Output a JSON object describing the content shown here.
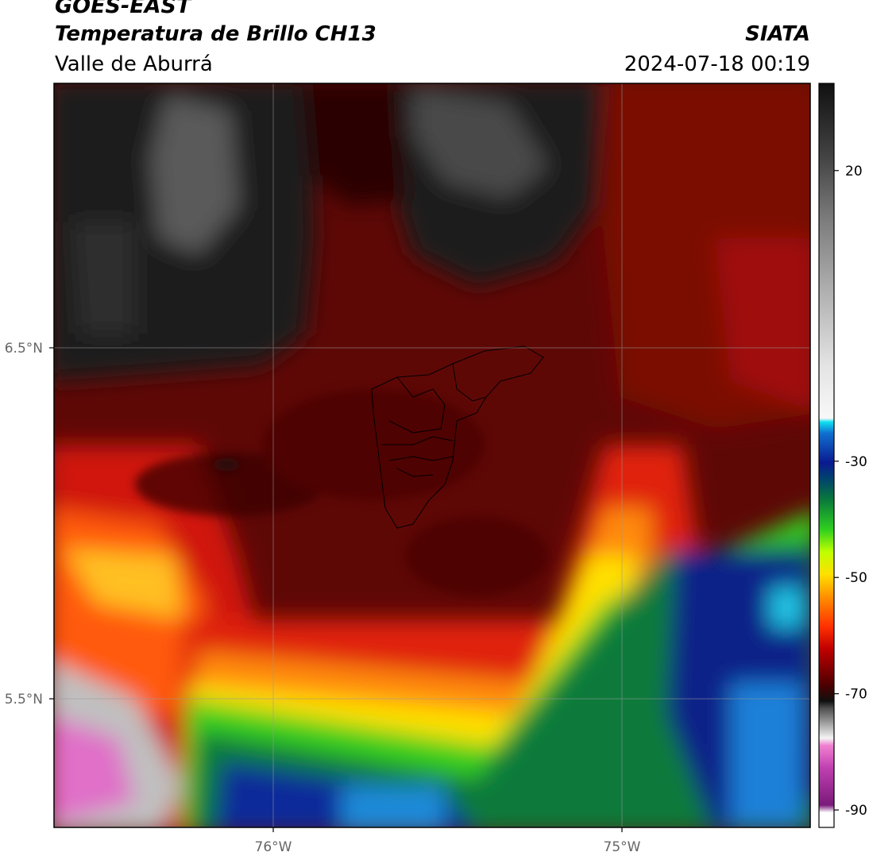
{
  "header": {
    "satellite": "GOES-EAST",
    "product": "Temperatura de Brillo CH13",
    "region": "Valle de Aburrá",
    "organization": "SIATA",
    "timestamp": "2024-07-18 00:19"
  },
  "map": {
    "lat_ticks": [
      {
        "label": "6.5°N",
        "value": 6.5
      },
      {
        "label": "5.5°N",
        "value": 5.5
      }
    ],
    "lon_ticks": [
      {
        "label": "76°W",
        "value": -76
      },
      {
        "label": "75°W",
        "value": -75
      }
    ],
    "extent": {
      "lon_min": -76.62,
      "lon_max": -74.47,
      "lat_min": 5.14,
      "lat_max": 7.25
    },
    "gridlines": true,
    "boundary": "Valle de Aburrá municipalities outline",
    "colors": {
      "warm": "#6b0806",
      "hot_band": "#e01a0a",
      "orange": "#ff8c00",
      "yellow": "#ffe600",
      "green": "#2fd11a",
      "dark_green": "#0a7a3a",
      "blue": "#0a2a9a",
      "cyan": "#1ecfe8",
      "magenta": "#e060c8",
      "gray_dark": "#1c1c1e",
      "gray_mid": "#5a5a5a",
      "gray_light": "#c8c8c8"
    }
  },
  "colorbar": {
    "ticks": [
      {
        "label": "20",
        "value": 20
      },
      {
        "label": "-30",
        "value": -30
      },
      {
        "label": "-50",
        "value": -50
      },
      {
        "label": "-70",
        "value": -70
      },
      {
        "label": "-90",
        "value": -90
      }
    ],
    "range": [
      -93,
      35
    ]
  }
}
